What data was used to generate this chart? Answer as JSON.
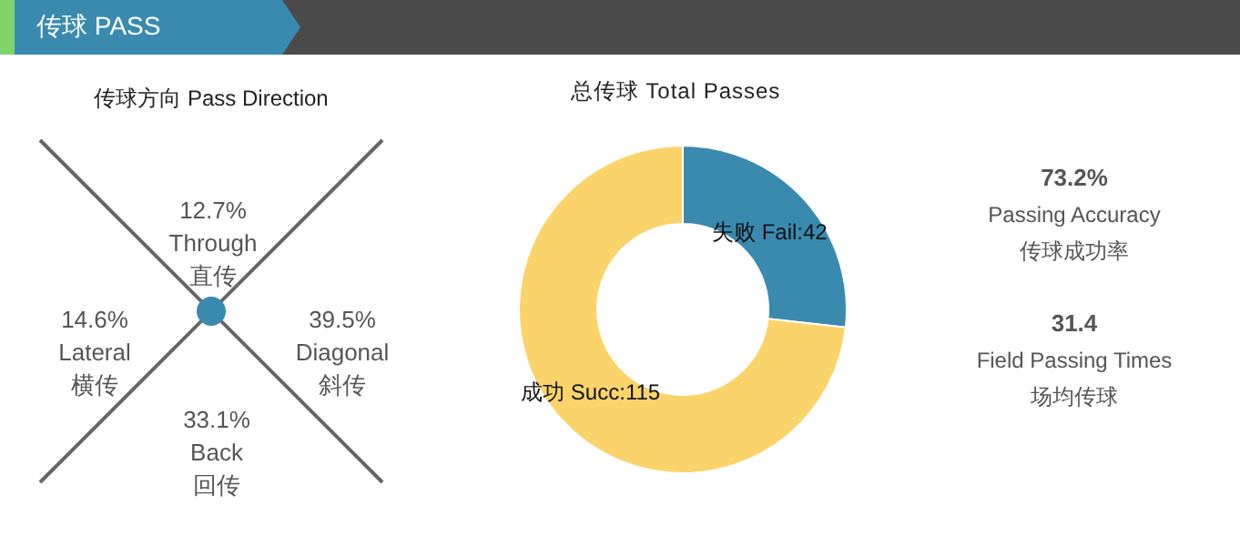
{
  "chart_data": [
    {
      "type": "other",
      "title": "传球 PASS"
    },
    {
      "type": "other",
      "title": "传球方向 Pass Direction",
      "categories": [
        "Through\n直传",
        "Lateral\n横传",
        "Diagonal\n斜传",
        "Back\n回传"
      ],
      "value_labels": [
        "12.7%",
        "14.6%",
        "39.5%",
        "33.1%"
      ]
    },
    {
      "type": "donut",
      "title": "总传球 Total Passes",
      "categories": [
        "失败 Fail",
        "成功 Succ"
      ],
      "values": [
        42,
        115
      ],
      "colors": [
        "#3a8ab0",
        "#fad46b"
      ],
      "value_labels": [
        ":42",
        ":115"
      ],
      "legend": false
    },
    {
      "type": "other",
      "categories": [
        "Passing Accuracy\n传球成功率",
        "Field Passing Times\n场均传球"
      ],
      "value_labels": [
        "73.2%",
        "31.4"
      ]
    }
  ]
}
